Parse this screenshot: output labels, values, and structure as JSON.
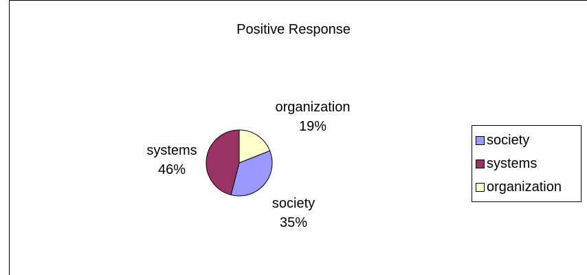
{
  "chart_data": {
    "type": "pie",
    "title": "Positive Response",
    "categories": [
      "society",
      "systems",
      "organization"
    ],
    "values": [
      35,
      46,
      19
    ],
    "value_labels": [
      "35%",
      "46%",
      "19%"
    ],
    "colors": [
      "#9999ff",
      "#993366",
      "#ffffcc"
    ],
    "legend": {
      "placement": "right",
      "entries": [
        "society",
        "systems",
        "organization"
      ]
    }
  }
}
